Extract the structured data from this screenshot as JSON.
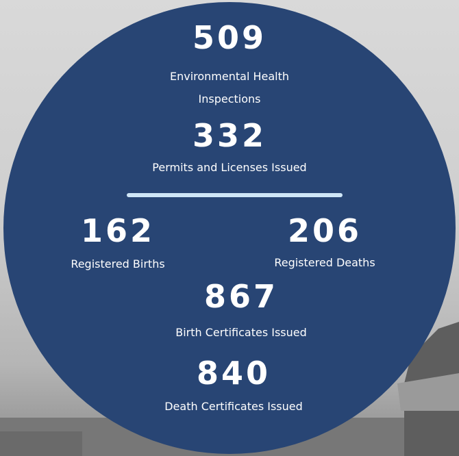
{
  "stats": [
    {
      "value": 509,
      "label": "Environmental Health Inspections"
    },
    {
      "value": 332,
      "label": "Permits and Licenses Issued"
    },
    {
      "value": 162,
      "label": "Registered Births"
    },
    {
      "value": 206,
      "label": "Registered Deaths"
    },
    {
      "value": 867,
      "label": "Birth Certificates Issued"
    },
    {
      "value": 840,
      "label": "Death Certificates Issued"
    }
  ]
}
